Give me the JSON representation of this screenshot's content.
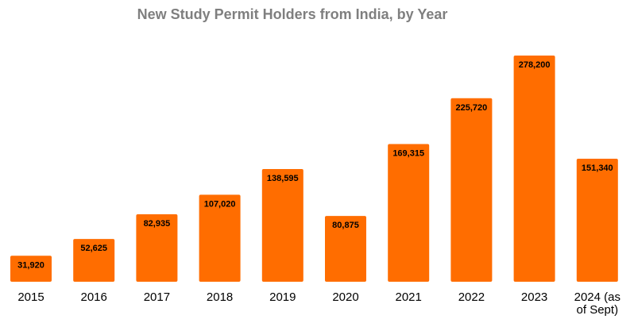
{
  "chart_data": {
    "type": "bar",
    "title": "New Study Permit Holders from India, by Year",
    "categories": [
      [
        "2015"
      ],
      [
        "2016"
      ],
      [
        "2017"
      ],
      [
        "2018"
      ],
      [
        "2019"
      ],
      [
        "2020"
      ],
      [
        "2021"
      ],
      [
        "2022"
      ],
      [
        "2023"
      ],
      [
        "2024 (as",
        "of Sept)"
      ]
    ],
    "values": [
      31920,
      52625,
      82935,
      107020,
      138595,
      80875,
      169315,
      225720,
      278200,
      151340
    ],
    "data_labels": [
      "31,920",
      "52,625",
      "82,935",
      "107,020",
      "138,595",
      "80,875",
      "169,315",
      "225,720",
      "278,200",
      "151,340"
    ],
    "xlabel": "",
    "ylabel": "",
    "ylim": [
      0,
      300000
    ],
    "grid": false,
    "legend": "none",
    "bar_color": "#ff6d00",
    "title_color": "#7f7f7f"
  }
}
